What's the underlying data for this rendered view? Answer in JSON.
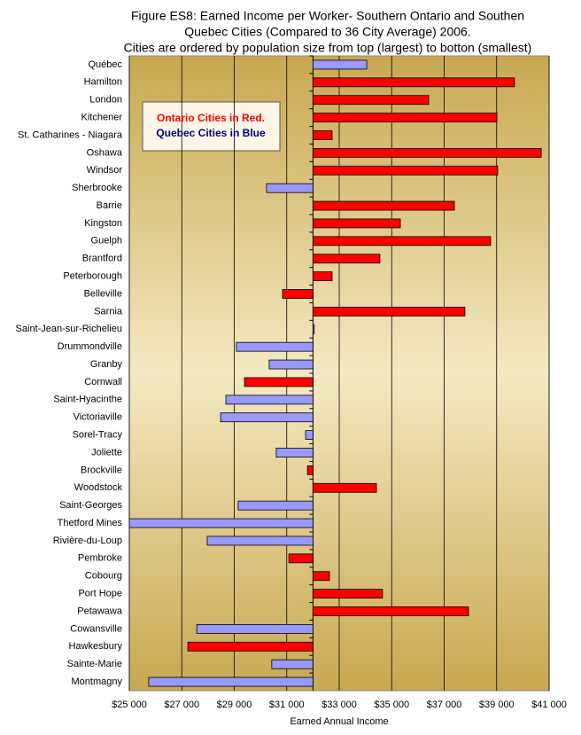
{
  "chart_data": {
    "type": "bar",
    "orientation": "horizontal",
    "title": [
      "Figure ES8: Earned Income per Worker- Southern Ontario and Southen",
      "Quebec Cities (Compared to 36 City Average) 2006."
    ],
    "subtitle": "Cities are ordered by population size from top (largest) to botton (smallest)",
    "x_label": "Earned Annual Income",
    "categories": [
      "Québec",
      "Hamilton",
      "London",
      "Kitchener",
      "St. Catharines - Niagara",
      "Oshawa",
      "Windsor",
      "Sherbrooke",
      "Barrie",
      "Kingston",
      "Guelph",
      "Brantford",
      "Peterborough",
      "Belleville",
      "Sarnia",
      "Saint-Jean-sur-Richelieu",
      "Drummondville",
      "Granby",
      "Cornwall",
      "Saint-Hyacinthe",
      "Victoriaville",
      "Sorel-Tracy",
      "Joliette",
      "Brockville",
      "Woodstock",
      "Saint-Georges",
      "Thetford Mines",
      "Rivière-du-Loup",
      "Pembroke",
      "Cobourg",
      "Port Hope",
      "Petawawa",
      "Cowansville",
      "Hawkesbury",
      "Sainte-Marie",
      "Montmagny"
    ],
    "baseline": 32000,
    "series": [
      {
        "name": "Ontario Cities in Red.",
        "color": "#ff0000",
        "text_color": "#ff0000",
        "values": [
          null,
          39680,
          36410,
          39010,
          32730,
          40700,
          39040,
          null,
          37390,
          35330,
          38770,
          34550,
          32730,
          30840,
          37790,
          null,
          null,
          null,
          29390,
          null,
          null,
          null,
          null,
          31790,
          34420,
          null,
          null,
          null,
          31080,
          32630,
          34650,
          37930,
          null,
          27230,
          null,
          null
        ]
      },
      {
        "name": "Quebec Cities in Blue",
        "color": "#9999ff",
        "text_color": "#000080",
        "values": [
          34050,
          null,
          null,
          null,
          null,
          null,
          null,
          30230,
          null,
          null,
          null,
          null,
          null,
          null,
          null,
          32050,
          29080,
          30330,
          null,
          28680,
          28480,
          31720,
          30600,
          null,
          null,
          29150,
          25000,
          27970,
          null,
          null,
          null,
          null,
          27570,
          null,
          30430,
          25740
        ]
      }
    ],
    "xlim": [
      25000,
      41000
    ],
    "xticks": [
      {
        "value": 25000,
        "label": "$25 000"
      },
      {
        "value": 27000,
        "label": "$27 000"
      },
      {
        "value": 29000,
        "label": "$29 000"
      },
      {
        "value": 31000,
        "label": "$31 000"
      },
      {
        "value": 33000,
        "label": "$33 000"
      },
      {
        "value": 35000,
        "label": "$35 000"
      },
      {
        "value": 37000,
        "label": "$37 000"
      },
      {
        "value": 39000,
        "label": "$39 000"
      },
      {
        "value": 41000,
        "label": "$41 000"
      }
    ],
    "grid": true
  }
}
